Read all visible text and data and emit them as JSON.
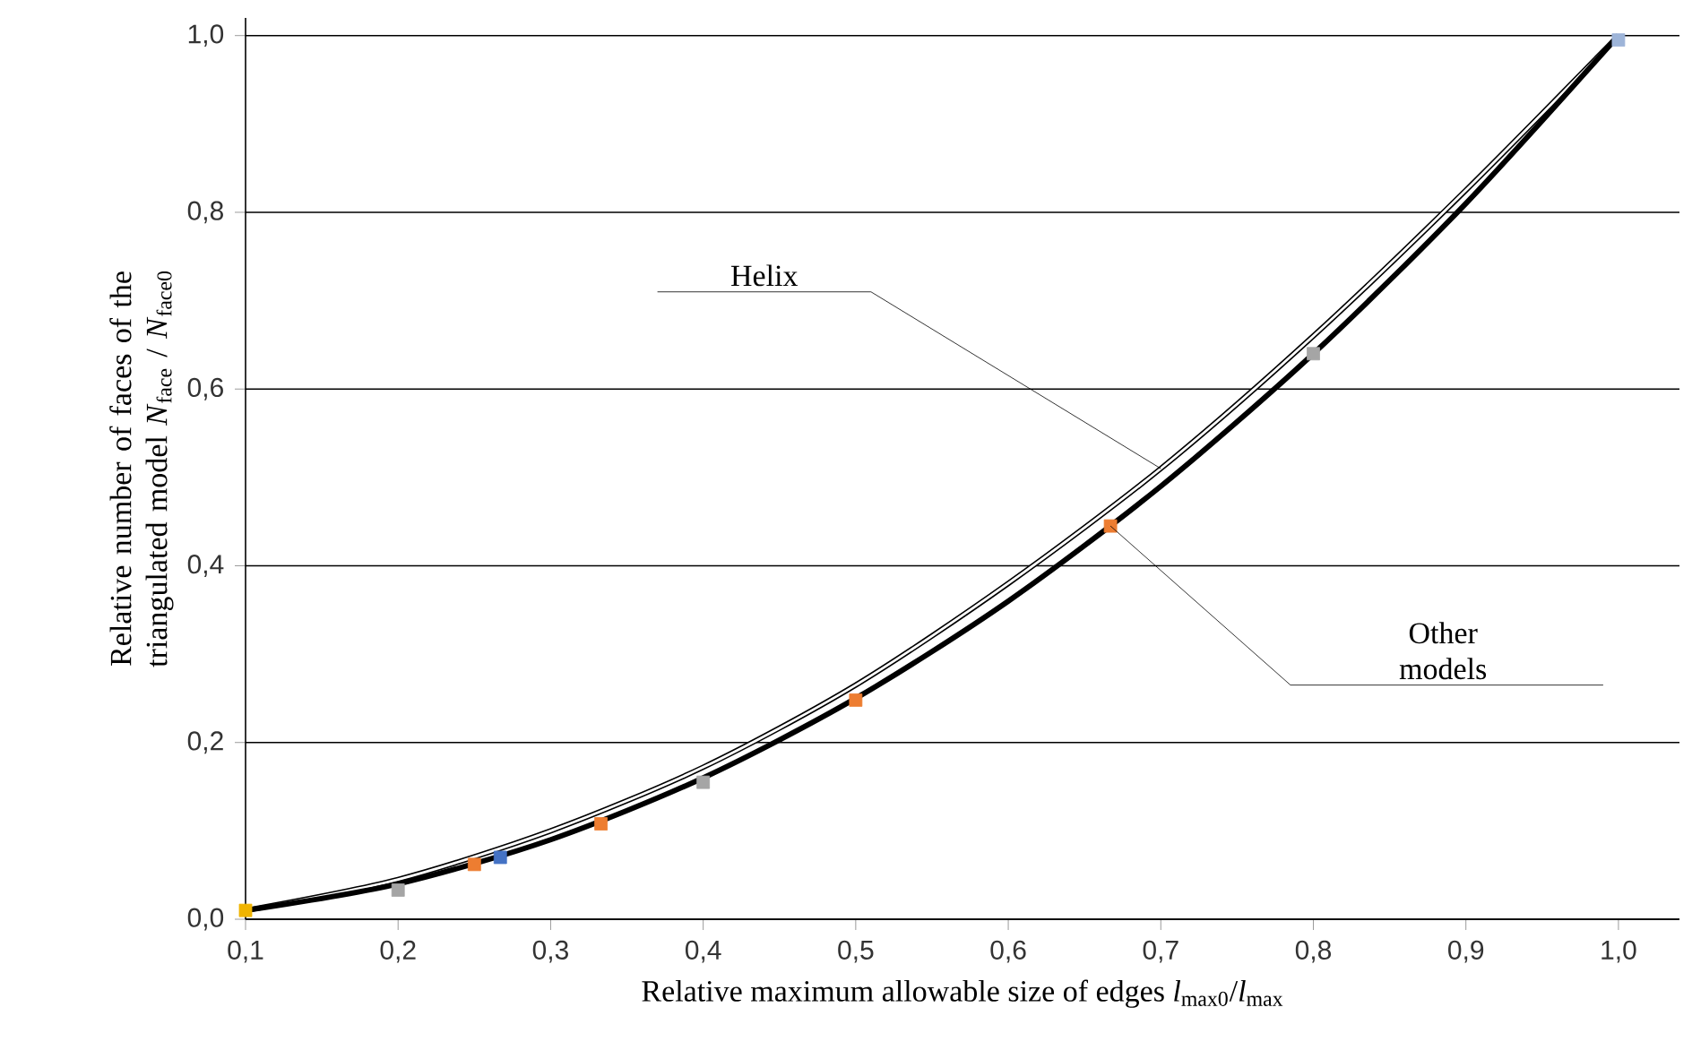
{
  "chart_data": {
    "type": "line",
    "xlabel": "Relative maximum allowable size of edges *l*$_{max0}$/*l*$_{max}$",
    "ylabel": "Relative number of faces of the triangulated model *N*$_{face}$ / *N*$_{face0}$",
    "xlim": [
      0.1,
      1.04
    ],
    "ylim": [
      0,
      1.02
    ],
    "xticks": [
      {
        "value": 0.1,
        "label": "0,1"
      },
      {
        "value": 0.2,
        "label": "0,2"
      },
      {
        "value": 0.3,
        "label": "0,3"
      },
      {
        "value": 0.4,
        "label": "0,4"
      },
      {
        "value": 0.5,
        "label": "0,5"
      },
      {
        "value": 0.6,
        "label": "0,6"
      },
      {
        "value": 0.7,
        "label": "0,7"
      },
      {
        "value": 0.8,
        "label": "0,8"
      },
      {
        "value": 0.9,
        "label": "0,9"
      },
      {
        "value": 1.0,
        "label": "1,0"
      }
    ],
    "yticks": [
      {
        "value": 0,
        "label": "0,0"
      },
      {
        "value": 0.2,
        "label": "0,2"
      },
      {
        "value": 0.4,
        "label": "0,4"
      },
      {
        "value": 0.6,
        "label": "0,6"
      },
      {
        "value": 0.8,
        "label": "0,8"
      },
      {
        "value": 1.0,
        "label": "1,0"
      }
    ],
    "grid": "y",
    "series": [
      {
        "color": "#ffffff",
        "x": [
          0.1,
          0.2,
          0.3,
          0.4,
          0.5,
          0.6,
          0.7,
          0.8,
          0.9,
          1.0
        ],
        "values": [
          0.01,
          0.045,
          0.1,
          0.172,
          0.265,
          0.38,
          0.51,
          0.66,
          0.825,
          1.0
        ]
      },
      {
        "color": "#000000",
        "x": [
          0.1,
          0.2,
          0.3,
          0.4,
          0.5,
          0.6,
          0.7,
          0.8,
          0.9,
          1.0
        ],
        "values": [
          0.01,
          0.04,
          0.09,
          0.16,
          0.25,
          0.36,
          0.49,
          0.64,
          0.81,
          1.0
        ]
      },
      {
        "type": "scatter",
        "marker": "square",
        "x": [
          0.1,
          0.2,
          0.25,
          0.267,
          0.333,
          0.4,
          0.5,
          0.667,
          0.8,
          1.0
        ],
        "values": [
          0.01,
          0.033,
          0.062,
          0.07,
          0.108,
          0.155,
          0.248,
          0.445,
          0.64,
          0.995
        ],
        "colors": [
          "#f0b400",
          "#a5a5a5",
          "#ed7d31",
          "#4472c4",
          "#ed7d31",
          "#a5a5a5",
          "#ed7d31",
          "#ed7d31",
          "#a5a5a5",
          "#9db4d8"
        ]
      }
    ],
    "annotations": [
      {
        "text": "Helix",
        "x": 0.7,
        "y": 0.51
      },
      {
        "text": "Other models",
        "x": 0.667,
        "y": 0.445
      }
    ]
  }
}
